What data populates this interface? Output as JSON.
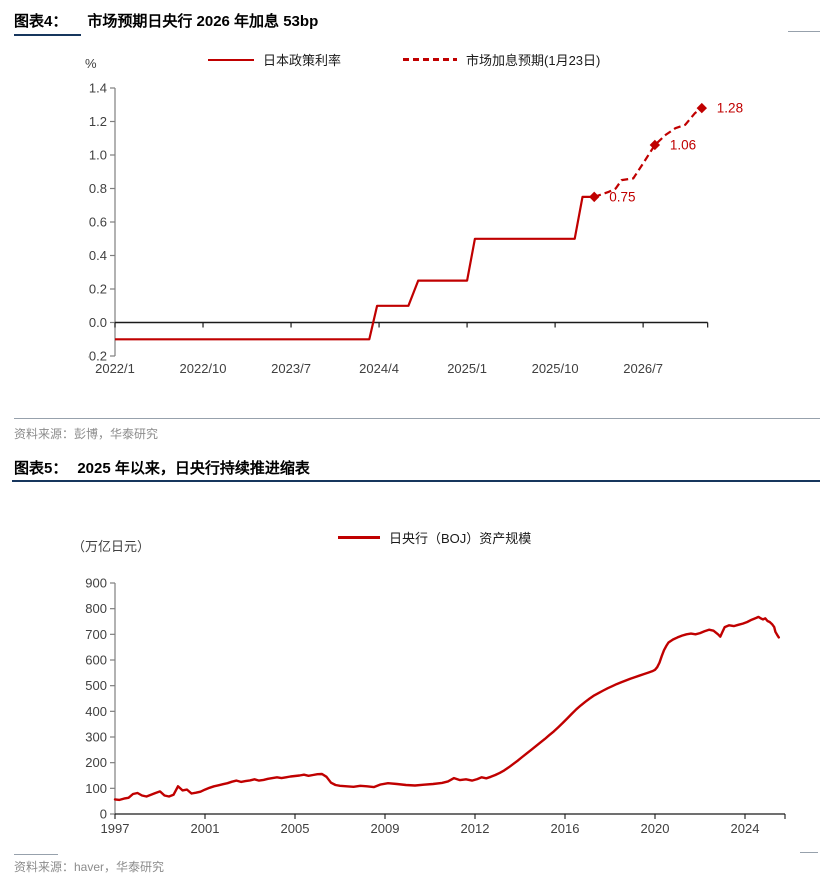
{
  "figure4": {
    "label": "图表4：",
    "title": "市场预期日央行 2026 年加息 53bp",
    "unit": "%",
    "legend": [
      "日本政策利率",
      "市场加息预期(1月23日)"
    ],
    "source": "资料来源：彭博，华泰研究"
  },
  "figure5": {
    "label": "图表5：",
    "title": "2025 年以来，日央行持续推进缩表",
    "unit": "（万亿日元）",
    "legend": [
      "日央行（BOJ）资产规模"
    ],
    "source": "资料来源：haver，华泰研究"
  },
  "colors": {
    "accent_red": "#C00000",
    "navy": "#17365D",
    "divider_gray": "#97A1AC",
    "axis_gray": "#7F7F7F",
    "axis_black": "#1a1a1a",
    "tick_text": "#404040",
    "source_text": "#8C8C8C"
  },
  "chart_data": [
    {
      "type": "line",
      "title": "市场预期日央行 2026 年加息 53bp",
      "ylabel": "%",
      "ylim": [
        -0.2,
        1.4
      ],
      "ytick_step": 0.2,
      "x_unit": "months since 2022/1",
      "xlim_months": [
        0,
        60.6
      ],
      "xtick_months": [
        0,
        9,
        18,
        27,
        36,
        45,
        54
      ],
      "xtick_labels": [
        "2022/1",
        "2022/10",
        "2023/7",
        "2024/4",
        "2025/1",
        "2025/10",
        "2026/7"
      ],
      "grid": false,
      "legend_position": "top",
      "series": [
        {
          "name": "日本政策利率",
          "style": "solid",
          "points": [
            [
              0,
              -0.1
            ],
            [
              26,
              -0.1
            ],
            [
              26.8,
              0.1
            ],
            [
              30,
              0.1
            ],
            [
              31,
              0.25
            ],
            [
              36,
              0.25
            ],
            [
              36.8,
              0.5
            ],
            [
              47,
              0.5
            ],
            [
              47.8,
              0.75
            ],
            [
              49,
              0.75
            ]
          ]
        },
        {
          "name": "市场加息预期(1月23日)",
          "style": "dashed",
          "points": [
            [
              49,
              0.75
            ],
            [
              50.5,
              0.78
            ],
            [
              51.2,
              0.8
            ],
            [
              51.8,
              0.85
            ],
            [
              53,
              0.86
            ],
            [
              54,
              0.95
            ],
            [
              55.2,
              1.06
            ],
            [
              56.3,
              1.12
            ],
            [
              57.3,
              1.16
            ],
            [
              58.3,
              1.18
            ],
            [
              59.3,
              1.25
            ],
            [
              60,
              1.28
            ]
          ]
        }
      ],
      "markers": [
        {
          "x": 49,
          "y": 0.75,
          "label": "0.75"
        },
        {
          "x": 55.2,
          "y": 1.06,
          "label": "1.06"
        },
        {
          "x": 60,
          "y": 1.28,
          "label": "1.28"
        }
      ]
    },
    {
      "type": "line",
      "title": "2025 年以来，日央行持续推进缩表",
      "ylabel": "（万亿日元）",
      "ylim": [
        0,
        900
      ],
      "ytick_step": 100,
      "xtick_years": [
        1997,
        2001,
        2005,
        2009,
        2012,
        2016,
        2020,
        2024
      ],
      "xtick_labels": [
        "1997",
        "2001",
        "2005",
        "2009",
        "2012",
        "2016",
        "2020",
        "2024"
      ],
      "grid": false,
      "legend_position": "top",
      "series": [
        {
          "name": "日央行（BOJ）资产规模",
          "style": "solid",
          "points": [
            [
              1997.0,
              57
            ],
            [
              1997.2,
              55
            ],
            [
              1997.4,
              60
            ],
            [
              1997.6,
              63
            ],
            [
              1997.8,
              78
            ],
            [
              1998.0,
              82
            ],
            [
              1998.2,
              72
            ],
            [
              1998.4,
              68
            ],
            [
              1998.6,
              75
            ],
            [
              1998.8,
              82
            ],
            [
              1999.0,
              88
            ],
            [
              1999.2,
              72
            ],
            [
              1999.4,
              68
            ],
            [
              1999.6,
              75
            ],
            [
              1999.8,
              108
            ],
            [
              2000.0,
              92
            ],
            [
              2000.2,
              95
            ],
            [
              2000.4,
              80
            ],
            [
              2000.6,
              83
            ],
            [
              2000.8,
              87
            ],
            [
              2001.0,
              95
            ],
            [
              2001.2,
              102
            ],
            [
              2001.4,
              108
            ],
            [
              2001.6,
              112
            ],
            [
              2001.8,
              116
            ],
            [
              2002.0,
              120
            ],
            [
              2002.2,
              126
            ],
            [
              2002.4,
              130
            ],
            [
              2002.6,
              125
            ],
            [
              2002.8,
              128
            ],
            [
              2003.0,
              131
            ],
            [
              2003.2,
              135
            ],
            [
              2003.4,
              130
            ],
            [
              2003.6,
              133
            ],
            [
              2003.8,
              137
            ],
            [
              2004.0,
              140
            ],
            [
              2004.2,
              143
            ],
            [
              2004.4,
              140
            ],
            [
              2004.6,
              143
            ],
            [
              2004.8,
              146
            ],
            [
              2005.0,
              148
            ],
            [
              2005.2,
              150
            ],
            [
              2005.4,
              153
            ],
            [
              2005.6,
              149
            ],
            [
              2005.8,
              152
            ],
            [
              2006.0,
              155
            ],
            [
              2006.2,
              156
            ],
            [
              2006.4,
              145
            ],
            [
              2006.6,
              122
            ],
            [
              2006.8,
              113
            ],
            [
              2007.0,
              110
            ],
            [
              2007.3,
              108
            ],
            [
              2007.6,
              106
            ],
            [
              2007.9,
              110
            ],
            [
              2008.2,
              108
            ],
            [
              2008.5,
              105
            ],
            [
              2008.8,
              115
            ],
            [
              2009.1,
              120
            ],
            [
              2009.4,
              117
            ],
            [
              2009.7,
              113
            ],
            [
              2010.0,
              111
            ],
            [
              2010.3,
              114
            ],
            [
              2010.6,
              117
            ],
            [
              2010.9,
              121
            ],
            [
              2011.1,
              127
            ],
            [
              2011.3,
              140
            ],
            [
              2011.5,
              132
            ],
            [
              2011.7,
              135
            ],
            [
              2011.9,
              130
            ],
            [
              2012.1,
              136
            ],
            [
              2012.3,
              143
            ],
            [
              2012.5,
              139
            ],
            [
              2012.7,
              145
            ],
            [
              2012.9,
              152
            ],
            [
              2013.1,
              160
            ],
            [
              2013.3,
              170
            ],
            [
              2013.5,
              182
            ],
            [
              2013.7,
              195
            ],
            [
              2013.9,
              208
            ],
            [
              2014.1,
              222
            ],
            [
              2014.3,
              236
            ],
            [
              2014.5,
              250
            ],
            [
              2014.7,
              264
            ],
            [
              2014.9,
              278
            ],
            [
              2015.1,
              292
            ],
            [
              2015.3,
              307
            ],
            [
              2015.5,
              322
            ],
            [
              2015.7,
              338
            ],
            [
              2015.9,
              355
            ],
            [
              2016.1,
              372
            ],
            [
              2016.3,
              390
            ],
            [
              2016.5,
              408
            ],
            [
              2016.7,
              423
            ],
            [
              2016.9,
              437
            ],
            [
              2017.1,
              450
            ],
            [
              2017.3,
              462
            ],
            [
              2017.5,
              472
            ],
            [
              2017.7,
              481
            ],
            [
              2017.9,
              490
            ],
            [
              2018.1,
              498
            ],
            [
              2018.3,
              506
            ],
            [
              2018.5,
              513
            ],
            [
              2018.7,
              520
            ],
            [
              2018.9,
              527
            ],
            [
              2019.1,
              533
            ],
            [
              2019.3,
              539
            ],
            [
              2019.5,
              545
            ],
            [
              2019.7,
              551
            ],
            [
              2019.9,
              557
            ],
            [
              2020.0,
              562
            ],
            [
              2020.1,
              572
            ],
            [
              2020.2,
              590
            ],
            [
              2020.3,
              615
            ],
            [
              2020.4,
              638
            ],
            [
              2020.5,
              655
            ],
            [
              2020.6,
              668
            ],
            [
              2020.8,
              680
            ],
            [
              2021.0,
              688
            ],
            [
              2021.2,
              695
            ],
            [
              2021.4,
              700
            ],
            [
              2021.6,
              703
            ],
            [
              2021.8,
              700
            ],
            [
              2022.0,
              705
            ],
            [
              2022.2,
              712
            ],
            [
              2022.4,
              718
            ],
            [
              2022.6,
              714
            ],
            [
              2022.8,
              700
            ],
            [
              2022.9,
              691
            ],
            [
              2023.0,
              710
            ],
            [
              2023.1,
              728
            ],
            [
              2023.3,
              735
            ],
            [
              2023.5,
              732
            ],
            [
              2023.7,
              737
            ],
            [
              2023.9,
              742
            ],
            [
              2024.1,
              748
            ],
            [
              2024.3,
              757
            ],
            [
              2024.5,
              764
            ],
            [
              2024.6,
              768
            ],
            [
              2024.7,
              762
            ],
            [
              2024.8,
              758
            ],
            [
              2024.9,
              762
            ],
            [
              2025.0,
              752
            ],
            [
              2025.1,
              748
            ],
            [
              2025.2,
              740
            ],
            [
              2025.3,
              728
            ],
            [
              2025.35,
              710
            ],
            [
              2025.45,
              695
            ],
            [
              2025.5,
              688
            ]
          ]
        }
      ]
    }
  ]
}
